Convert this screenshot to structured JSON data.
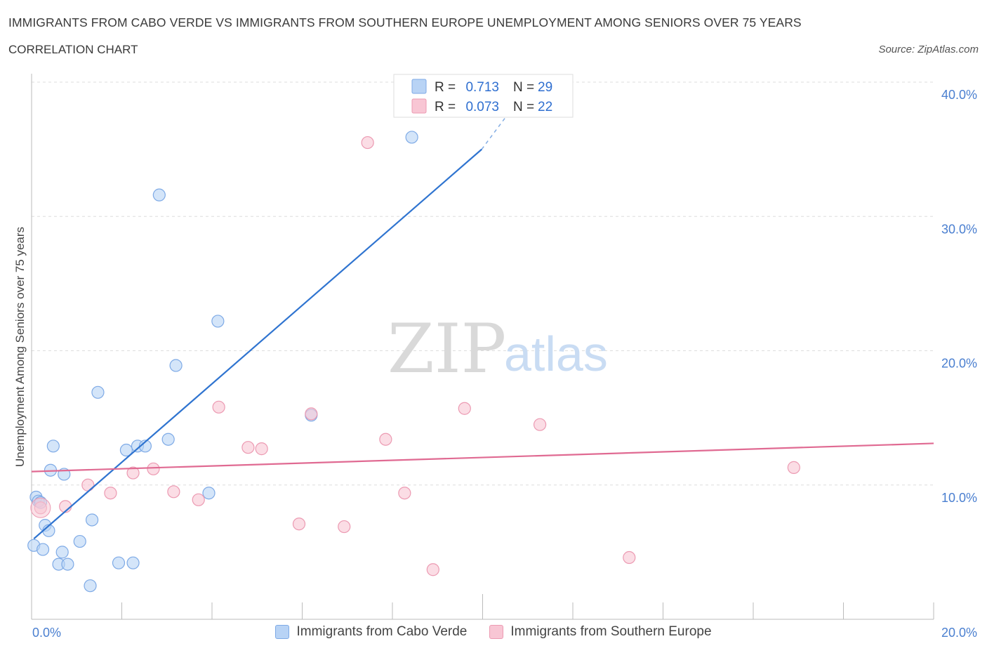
{
  "header": {
    "title": "IMMIGRANTS FROM CABO VERDE VS IMMIGRANTS FROM SOUTHERN EUROPE UNEMPLOYMENT AMONG SENIORS OVER 75 YEARS",
    "subtitle": "CORRELATION CHART",
    "source": "Source: ZipAtlas.com"
  },
  "watermark": {
    "zip": "ZIP",
    "atlas": "atlas"
  },
  "legend": {
    "r_label": "R =",
    "n_label": "N =",
    "series1": {
      "r": "0.713",
      "n": "29"
    },
    "series2": {
      "r": "0.073",
      "n": "22"
    }
  },
  "colors": {
    "blue_fill": "#b8d3f5",
    "blue_stroke": "#7eaae6",
    "blue_line": "#2f74d0",
    "pink_fill": "#f8c6d4",
    "pink_stroke": "#ec9ab2",
    "pink_line": "#e06a92",
    "tick": "#4a7fd0",
    "grid": "#dddddd"
  },
  "chart_data": {
    "type": "scatter",
    "title": "IMMIGRANTS FROM CABO VERDE VS IMMIGRANTS FROM SOUTHERN EUROPE UNEMPLOYMENT AMONG SENIORS OVER 75 YEARS",
    "ylabel": "Unemployment Among Seniors over 75 years",
    "xlabel": "",
    "xlim": [
      0,
      20
    ],
    "ylim": [
      0,
      40
    ],
    "x_tick_labels": [
      "0.0%",
      "20.0%"
    ],
    "y_ticks": [
      10,
      20,
      30,
      40
    ],
    "y_tick_labels": [
      "10.0%",
      "20.0%",
      "30.0%",
      "40.0%"
    ],
    "series": [
      {
        "name": "Immigrants from Cabo Verde",
        "color": "blue",
        "r": 0.713,
        "n": 29,
        "points": [
          [
            0.05,
            5.5
          ],
          [
            0.1,
            9.1
          ],
          [
            0.15,
            8.8
          ],
          [
            0.25,
            5.2
          ],
          [
            0.3,
            7.0
          ],
          [
            0.38,
            6.6
          ],
          [
            0.42,
            11.1
          ],
          [
            0.48,
            12.9
          ],
          [
            0.6,
            4.1
          ],
          [
            0.68,
            5.0
          ],
          [
            0.72,
            10.8
          ],
          [
            0.8,
            4.1
          ],
          [
            1.07,
            5.8
          ],
          [
            1.3,
            2.5
          ],
          [
            1.34,
            7.4
          ],
          [
            1.47,
            16.9
          ],
          [
            1.93,
            4.2
          ],
          [
            2.1,
            12.6
          ],
          [
            2.25,
            4.2
          ],
          [
            2.35,
            12.9
          ],
          [
            2.52,
            12.9
          ],
          [
            2.83,
            31.6
          ],
          [
            3.03,
            13.4
          ],
          [
            3.2,
            18.9
          ],
          [
            3.93,
            9.4
          ],
          [
            4.13,
            22.2
          ],
          [
            6.2,
            15.2
          ],
          [
            8.43,
            35.9
          ],
          [
            0.2,
            8.7
          ]
        ],
        "trend": {
          "x0": 0.05,
          "y0": 6.0,
          "x1": 9.98,
          "y1": 35.0,
          "dashed_to_x": 11.0,
          "dashed_to_y": 39.6
        }
      },
      {
        "name": "Immigrants from Southern Europe",
        "color": "pink",
        "r": 0.073,
        "n": 22,
        "points": [
          [
            0.2,
            8.3
          ],
          [
            0.75,
            8.4
          ],
          [
            1.25,
            10.0
          ],
          [
            1.75,
            9.4
          ],
          [
            2.25,
            10.9
          ],
          [
            2.7,
            11.2
          ],
          [
            3.15,
            9.5
          ],
          [
            3.7,
            8.9
          ],
          [
            4.15,
            15.8
          ],
          [
            4.8,
            12.8
          ],
          [
            5.1,
            12.7
          ],
          [
            5.93,
            7.1
          ],
          [
            6.2,
            15.3
          ],
          [
            6.93,
            6.9
          ],
          [
            7.45,
            35.5
          ],
          [
            7.85,
            13.4
          ],
          [
            8.27,
            9.4
          ],
          [
            8.9,
            3.7
          ],
          [
            9.6,
            15.7
          ],
          [
            11.27,
            14.5
          ],
          [
            13.25,
            4.6
          ],
          [
            16.9,
            11.3
          ]
        ],
        "trend": {
          "x0": 0,
          "y0": 11.0,
          "x1": 20,
          "y1": 13.1
        }
      }
    ]
  },
  "bottom_legend": {
    "series1_label": "Immigrants from Cabo Verde",
    "series2_label": "Immigrants from Southern Europe"
  }
}
